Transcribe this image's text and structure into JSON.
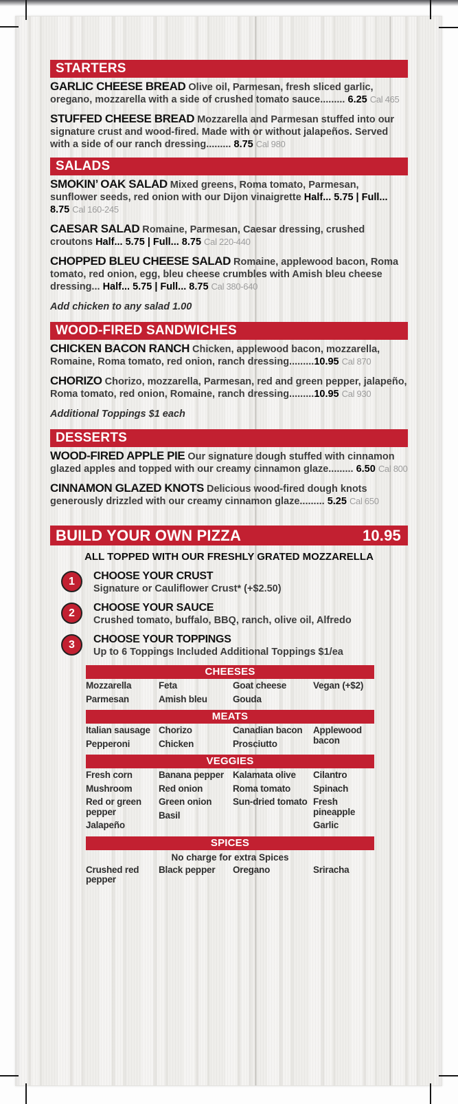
{
  "colors": {
    "accent_red": "#c22031",
    "panel_wood": "#efeeeb",
    "crop_mark": "#151515"
  },
  "sections": [
    {
      "title": "STARTERS",
      "items": [
        {
          "name": "GARLIC CHEESE BREAD",
          "desc": "Olive oil, Parmesan, fresh sliced garlic, oregano, mozzarella with a side of crushed tomato sauce......... ",
          "price": "6.25",
          "cal": "Cal 465"
        },
        {
          "name": "STUFFED CHEESE BREAD",
          "desc": "Mozzarella and Parmesan stuffed into our signature crust and wood-fired. Made with or without jalapeños. Served with a side of our ranch dressing......... ",
          "price": "8.75",
          "cal": "Cal 980"
        }
      ]
    },
    {
      "title": "SALADS",
      "items": [
        {
          "name": "SMOKIN’ OAK SALAD",
          "desc": "Mixed greens, Roma tomato, Parmesan, sunflower seeds, red onion with our Dijon vinaigrette ",
          "price": "Half... 5.75 | Full... 8.75",
          "cal": "Cal 160-245"
        },
        {
          "name": "CAESAR SALAD",
          "desc": "Romaine, Parmesan, Caesar dressing, crushed croutons ",
          "price": "Half... 5.75 | Full... 8.75",
          "cal": "Cal 220-440"
        },
        {
          "name": "CHOPPED BLEU CHEESE SALAD",
          "desc": "Romaine, applewood bacon, Roma tomato, red onion, egg, bleu cheese crumbles with Amish bleu cheese dressing... ",
          "price": "Half... 5.75 | Full... 8.75",
          "cal": "Cal 380-640"
        }
      ],
      "note": "Add chicken to any salad 1.00"
    },
    {
      "title": "WOOD-FIRED SANDWICHES",
      "items": [
        {
          "name": "CHICKEN BACON RANCH",
          "desc": "Chicken, applewood bacon, mozzarella, Romaine, Roma tomato, red onion, ranch dressing.........",
          "price": "10.95",
          "cal": "Cal 870"
        },
        {
          "name": "CHORIZO",
          "desc": "Chorizo, mozzarella, Parmesan, red and green pepper, jalapeño, Roma tomato, red onion, Romaine, ranch dressing.........",
          "price": "10.95",
          "cal": "Cal 930"
        }
      ],
      "note": "Additional Toppings $1 each"
    },
    {
      "title": "DESSERTS",
      "items": [
        {
          "name": "WOOD-FIRED APPLE PIE",
          "desc": "Our signature dough stuffed with cinnamon glazed apples and topped with our creamy cinnamon glaze......... ",
          "price": "6.50",
          "cal": "Cal 800"
        },
        {
          "name": "CINNAMON GLAZED KNOTS",
          "desc": "Delicious wood-fired dough knots generously drizzled with our creamy cinnamon glaze......... ",
          "price": "5.25",
          "cal": "Cal 650"
        }
      ]
    }
  ],
  "byo": {
    "title": "BUILD YOUR OWN PIZZA",
    "price": "10.95",
    "subtitle": "ALL TOPPED WITH OUR FRESHLY GRATED MOZZARELLA",
    "steps": [
      {
        "num": "1",
        "title": "CHOOSE YOUR CRUST",
        "desc": "Signature or Cauliflower Crust* (+$2.50)"
      },
      {
        "num": "2",
        "title": "CHOOSE YOUR SAUCE",
        "desc": "Crushed tomato, buffalo, BBQ, ranch, olive oil, Alfredo"
      },
      {
        "num": "3",
        "title": "CHOOSE YOUR TOPPINGS",
        "desc": "Up to 6 Toppings Included Additional Toppings $1/ea"
      }
    ],
    "toppings": [
      {
        "header": "CHEESES",
        "cols": [
          [
            "Mozzarella",
            "Parmesan"
          ],
          [
            "Feta",
            "Amish bleu"
          ],
          [
            "Goat cheese",
            "Gouda"
          ],
          [
            "Vegan (+$2)"
          ]
        ]
      },
      {
        "header": "MEATS",
        "cols": [
          [
            "Italian sausage",
            "Pepperoni"
          ],
          [
            "Chorizo",
            "Chicken"
          ],
          [
            "Canadian bacon",
            "Prosciutto"
          ],
          [
            "Applewood bacon"
          ]
        ]
      },
      {
        "header": "VEGGIES",
        "cols": [
          [
            "Fresh corn",
            "Mushroom",
            "Red or green pepper",
            "Jalapeño"
          ],
          [
            "Banana pepper",
            "Red onion",
            "Green onion",
            "Basil"
          ],
          [
            "Kalamata olive",
            "Roma tomato",
            "Sun-dried tomato"
          ],
          [
            "Cilantro",
            "Spinach",
            "Fresh pineapple",
            "Garlic"
          ]
        ]
      },
      {
        "header": "SPICES",
        "note": "No charge for extra Spices",
        "cols": [
          [
            "Crushed red pepper"
          ],
          [
            "Black pepper"
          ],
          [
            "Oregano"
          ],
          [
            "Sriracha"
          ]
        ]
      }
    ]
  }
}
